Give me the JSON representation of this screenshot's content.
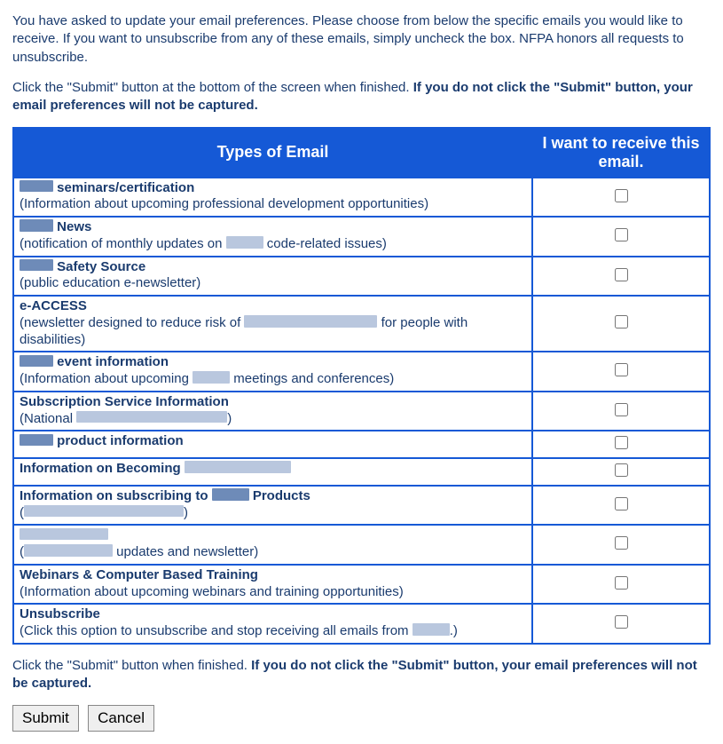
{
  "intro": {
    "p1": "You have asked to update your email preferences. Please choose from below the specific emails you would like to receive. If you want to unsubscribe from any of these emails, simply uncheck the box. NFPA honors all requests to unsubscribe.",
    "p2_a": "Click the \"Submit\" button at the bottom of the screen when finished. ",
    "p2_b": "If you do not click the \"Submit\" button, your email preferences will not be captured."
  },
  "table": {
    "header_type": "Types of Email",
    "header_check": "I want to receive this email."
  },
  "rows": [
    {
      "title_pre_redact": 38,
      "title_after": " seminars/certification",
      "desc": "(Information about upcoming professional development opportunities)",
      "checked": false
    },
    {
      "title_pre_redact": 38,
      "title_after": " News",
      "desc_before": "(notification of monthly updates on ",
      "desc_redact": 42,
      "desc_after": " code-related issues)",
      "checked": false
    },
    {
      "title_pre_redact": 38,
      "title_after": " Safety Source",
      "desc": "(public education e-newsletter)",
      "checked": false
    },
    {
      "title": "e-ACCESS",
      "desc_before": "(newsletter designed to reduce risk of ",
      "desc_redact": 150,
      "desc_after": " for people with disabilities)",
      "checked": false
    },
    {
      "title_pre_redact": 38,
      "title_after": " event information",
      "desc_before": "(Information about upcoming ",
      "desc_redact": 42,
      "desc_after": " meetings and conferences)",
      "checked": false
    },
    {
      "title": "Subscription Service Information",
      "desc_before": "(National ",
      "desc_redact": 170,
      "desc_after": ")",
      "checked": false
    },
    {
      "title_pre_redact": 38,
      "title_after": " product information",
      "checked": false
    },
    {
      "title_before": "Information on Becoming ",
      "title_redact": 120,
      "checked": false
    },
    {
      "title_before": "Information on subscribing to ",
      "title_mid_redact": 42,
      "title_after": " Products",
      "desc_before": "(",
      "desc_redact": 180,
      "desc_after": ")",
      "checked": false
    },
    {
      "title_redact_only": 100,
      "desc_before": "(",
      "desc_redact": 100,
      "desc_after": " updates and newsletter)",
      "checked": false
    },
    {
      "title": "Webinars & Computer Based Training",
      "desc": "(Information about upcoming webinars and training opportunities)",
      "checked": false
    },
    {
      "title": "Unsubscribe",
      "desc_before": "(Click this option to unsubscribe and stop receiving all emails from ",
      "desc_redact": 42,
      "desc_after": ".)",
      "checked": false
    }
  ],
  "footer": {
    "a": "Click the \"Submit\" button when finished. ",
    "b": "If you do not click the \"Submit\" button, your email preferences will not be captured."
  },
  "buttons": {
    "submit": "Submit",
    "cancel": "Cancel"
  },
  "style": {
    "text_color": "#1a3b6e",
    "table_border": "#1559d6",
    "header_bg": "#1559d6",
    "header_fg": "#ffffff",
    "redact_dark": "#6e8bb8",
    "redact_light": "#b9c7de"
  }
}
